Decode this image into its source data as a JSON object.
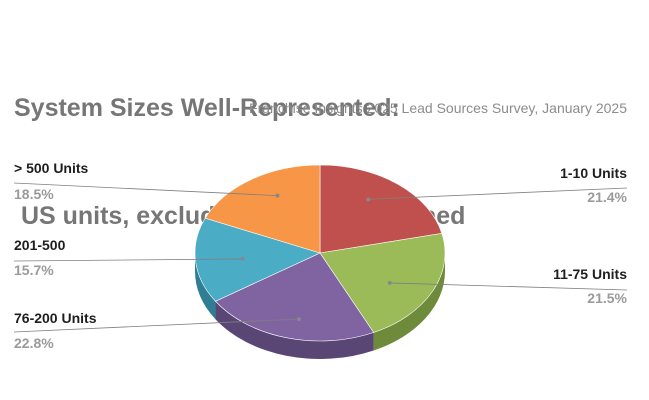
{
  "title_line1": "System Sizes Well-Represented:",
  "title_line2": " US units, excluding Company-Owned",
  "subtitle": "Franchise Insights 2025 Lead Sources Survey, January 2025",
  "chart_data": {
    "type": "pie",
    "style": "3d",
    "title": "System Sizes Well-Represented: US units, excluding Company-Owned",
    "subtitle": "Franchise Insights 2025 Lead Sources Survey, January 2025",
    "slices": [
      {
        "label": "1-10 Units",
        "value": 21.4,
        "value_text": "21.4%",
        "color": "#C0504D",
        "side_color": "#8E3B39"
      },
      {
        "label": "11-75 Units",
        "value": 21.5,
        "value_text": "21.5%",
        "color": "#9BBB59",
        "side_color": "#6E8A3B"
      },
      {
        "label": "76-200 Units",
        "value": 22.8,
        "value_text": "22.8%",
        "color": "#8064A2",
        "side_color": "#5A4675"
      },
      {
        "label": "201-500",
        "value": 15.7,
        "value_text": "15.7%",
        "color": "#4BACC6",
        "side_color": "#2F7E93"
      },
      {
        "label": "> 500 Units",
        "value": 18.5,
        "value_text": "18.5%",
        "color": "#F79646",
        "side_color": "#B86E30"
      }
    ],
    "legend": "none",
    "data_labels": "outside with leader lines"
  }
}
